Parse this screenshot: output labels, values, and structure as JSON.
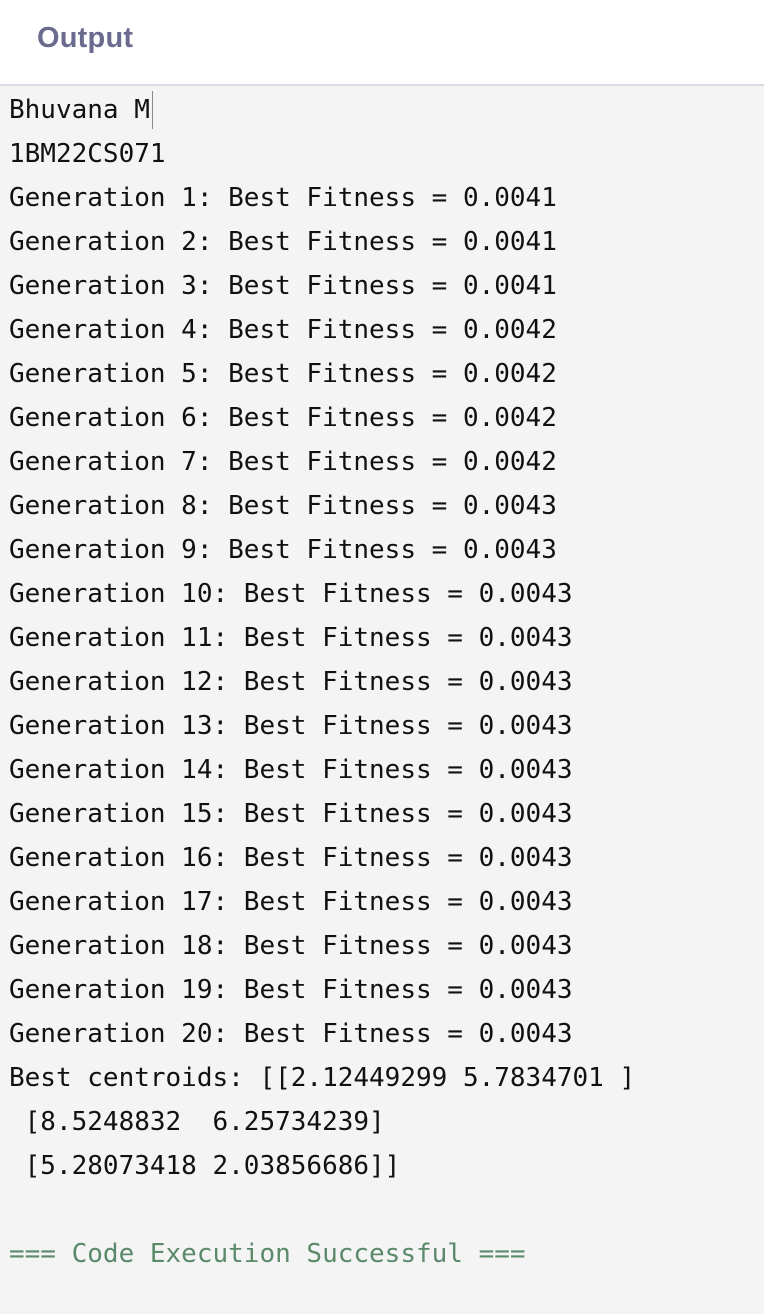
{
  "header": {
    "title": "Output"
  },
  "console": {
    "first_line": "Bhuvana M",
    "lines": [
      "1BM22CS071",
      "Generation 1: Best Fitness = 0.0041",
      "Generation 2: Best Fitness = 0.0041",
      "Generation 3: Best Fitness = 0.0041",
      "Generation 4: Best Fitness = 0.0042",
      "Generation 5: Best Fitness = 0.0042",
      "Generation 6: Best Fitness = 0.0042",
      "Generation 7: Best Fitness = 0.0042",
      "Generation 8: Best Fitness = 0.0043",
      "Generation 9: Best Fitness = 0.0043",
      "Generation 10: Best Fitness = 0.0043",
      "Generation 11: Best Fitness = 0.0043",
      "Generation 12: Best Fitness = 0.0043",
      "Generation 13: Best Fitness = 0.0043",
      "Generation 14: Best Fitness = 0.0043",
      "Generation 15: Best Fitness = 0.0043",
      "Generation 16: Best Fitness = 0.0043",
      "Generation 17: Best Fitness = 0.0043",
      "Generation 18: Best Fitness = 0.0043",
      "Generation 19: Best Fitness = 0.0043",
      "Generation 20: Best Fitness = 0.0043",
      "Best centroids: [[2.12449299 5.7834701 ]",
      " [8.5248832  6.25734239]",
      " [5.28073418 2.03856686]]"
    ],
    "success_message": "=== Code Execution Successful ==="
  },
  "colors": {
    "header_title": "#6b6a8f",
    "background": "#f4f4f5",
    "text": "#111111",
    "success": "#5a8a6a"
  }
}
